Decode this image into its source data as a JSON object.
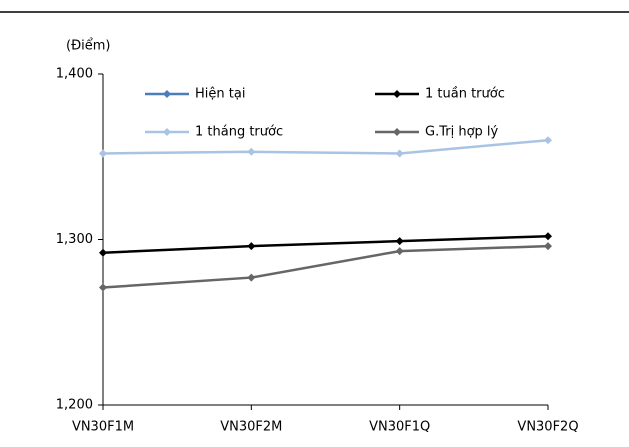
{
  "chart_data": {
    "type": "line",
    "y_axis_label": "(Điểm)",
    "categories": [
      "VN30F1M",
      "VN30F2M",
      "VN30F1Q",
      "VN30F2Q"
    ],
    "series": [
      {
        "name": "Hiện tại",
        "color": "#4a7ebb",
        "values": [
          null,
          null,
          null,
          null
        ]
      },
      {
        "name": "1 tuần trước",
        "color": "#000000",
        "values": [
          1292,
          1296,
          1299,
          1302
        ]
      },
      {
        "name": "1 tháng trước",
        "color": "#a9c3e3",
        "values": [
          1352,
          1353,
          1352,
          1360
        ]
      },
      {
        "name": "G.Trị hợp lý",
        "color": "#666666",
        "values": [
          1271,
          1277,
          1293,
          1296
        ]
      }
    ],
    "ylim": [
      1200,
      1400
    ],
    "yticks": [
      {
        "value": 1200,
        "label": "1,200"
      },
      {
        "value": 1300,
        "label": "1,300"
      },
      {
        "value": 1400,
        "label": "1,400"
      }
    ]
  }
}
